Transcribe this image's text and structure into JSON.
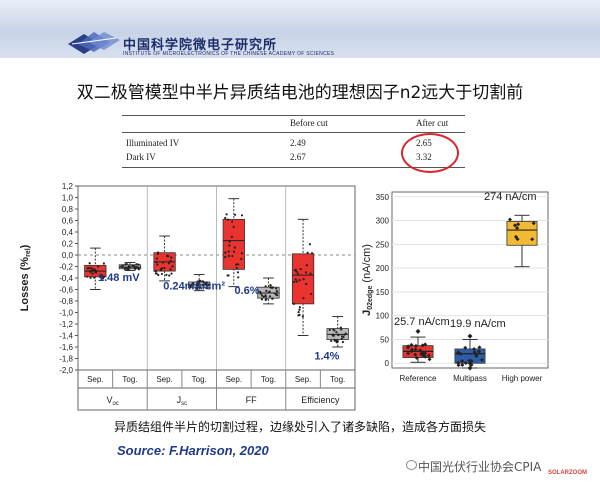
{
  "header": {
    "institute_cn": "中国科学院微电子研究所",
    "institute_en": "INSTITUTE OF MICROELECTRONICS OF THE CHINESE ACADEMY OF SCIENCES",
    "logo_icon": "ime-cas-logo"
  },
  "slide_title": "双二极管模型中半片异质结电池的理想因子n2远大于切割前",
  "ideality_table": {
    "columns": [
      "",
      "Before cut",
      "After cut"
    ],
    "rows": [
      {
        "label": "Illuminated IV",
        "before": "2.49",
        "after": "2.65"
      },
      {
        "label": "Dark IV",
        "before": "2.67",
        "after": "3.32"
      }
    ],
    "highlight_color": "#d8262a"
  },
  "chart_data": [
    {
      "type": "box",
      "ylabel": "Losses (%rel)",
      "ylim": [
        -2.0,
        1.2
      ],
      "yticks": [
        "1,2",
        "1,0",
        "0,8",
        "0,6",
        "0,4",
        "0,2",
        "0,0",
        "-0,2",
        "-0,4",
        "-0,6",
        "-0,8",
        "-1,0",
        "-1,2",
        "-1,4",
        "-1,6",
        "-1,8",
        "-2,0"
      ],
      "categories": [
        "Sep.",
        "Tog.",
        "Sep.",
        "Tog.",
        "Sep.",
        "Tog.",
        "Sep.",
        "Tog."
      ],
      "groups": [
        {
          "label": "Voc",
          "main": "V",
          "sub": "oc",
          "annotation": "1.48 mV"
        },
        {
          "label": "Jsc",
          "main": "J",
          "sub": "sc",
          "annotation": "0.24mA/cm²"
        },
        {
          "label": "FF",
          "main": "FF",
          "sub": "",
          "annotation": "0.6%"
        },
        {
          "label": "Efficiency",
          "main": "Efficiency",
          "sub": "",
          "annotation": "1.4%"
        }
      ],
      "boxes": [
        {
          "cat": "Sep.",
          "q1": -0.38,
          "median": -0.28,
          "q3": -0.18,
          "min": -0.6,
          "max": 0.12,
          "color": "#e8332f"
        },
        {
          "cat": "Tog.",
          "q1": -0.24,
          "median": -0.21,
          "q3": -0.17,
          "min": -0.27,
          "max": -0.13,
          "color": "#b8b8b8"
        },
        {
          "cat": "Sep.",
          "q1": -0.28,
          "median": -0.12,
          "q3": 0.04,
          "min": -0.45,
          "max": 0.33,
          "color": "#e8332f"
        },
        {
          "cat": "Tog.",
          "q1": -0.57,
          "median": -0.52,
          "q3": -0.47,
          "min": -0.62,
          "max": -0.34,
          "color": "#b8b8b8"
        },
        {
          "cat": "Sep.",
          "q1": -0.25,
          "median": 0.25,
          "q3": 0.62,
          "min": -0.55,
          "max": 0.98,
          "color": "#e8332f"
        },
        {
          "cat": "Tog.",
          "q1": -0.75,
          "median": -0.66,
          "q3": -0.56,
          "min": -0.85,
          "max": -0.4,
          "color": "#b8b8b8"
        },
        {
          "cat": "Sep.",
          "q1": -0.85,
          "median": -0.35,
          "q3": 0.02,
          "min": -1.4,
          "max": 0.62,
          "color": "#e8332f"
        },
        {
          "cat": "Tog.",
          "q1": -1.47,
          "median": -1.38,
          "q3": -1.28,
          "min": -1.6,
          "max": -1.07,
          "color": "#b8b8b8"
        }
      ]
    },
    {
      "type": "box",
      "ylabel": "J02edge (nA/cm)",
      "ylabel_main": "J",
      "ylabel_sub": "02edge",
      "ylabel_unit": "(nA/cm)",
      "ylim": [
        -10,
        360
      ],
      "yticks": [
        "350",
        "300",
        "250",
        "200",
        "150",
        "100",
        "50",
        "0"
      ],
      "categories": [
        "Reference",
        "Multipass",
        "High power"
      ],
      "annotations": [
        "25.7 nA/cm",
        "19.9 nA/cm",
        "274 nA/cm"
      ],
      "boxes": [
        {
          "cat": "Reference",
          "q1": 12,
          "median": 25,
          "q3": 37,
          "min": 2,
          "max": 55,
          "color": "#e8332f"
        },
        {
          "cat": "Multipass",
          "q1": 0,
          "median": 20,
          "q3": 30,
          "min": -10,
          "max": 50,
          "color": "#2f5ea8"
        },
        {
          "cat": "High power",
          "q1": 248,
          "median": 280,
          "q3": 298,
          "min": 203,
          "max": 311,
          "color": "#f2b933"
        }
      ]
    }
  ],
  "caption": "异质结组件半片的切割过程，边缘处引入了诸多缺陷，造成各方面损失",
  "source": "Source: F.Harrison, 2020",
  "watermark": "中国光伏行业协会CPIA",
  "watermark_small": "SOLARZOOM"
}
